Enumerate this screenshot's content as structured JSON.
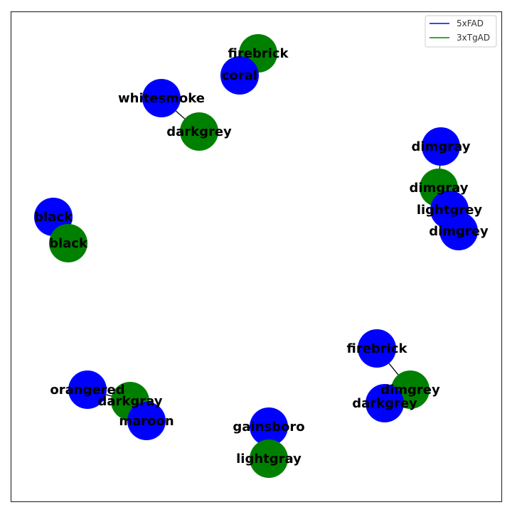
{
  "colors": {
    "frame": "#333333",
    "edge": "#000000",
    "legend_border": "#cccccc"
  },
  "legend": {
    "items": [
      {
        "label": "5xFAD",
        "color": "#0000ff"
      },
      {
        "label": "3xTgAD",
        "color": "#008000"
      }
    ]
  },
  "groups": {
    "5xFAD": {
      "color": "#0000ff"
    },
    "3xTgAD": {
      "color": "#008000"
    }
  },
  "nodes": [
    {
      "id": "n1",
      "label": "firebrick",
      "group": "3xTgAD"
    },
    {
      "id": "n2",
      "label": "coral",
      "group": "5xFAD"
    },
    {
      "id": "n3",
      "label": "whitesmoke",
      "group": "5xFAD"
    },
    {
      "id": "n4",
      "label": "darkgrey",
      "group": "3xTgAD"
    },
    {
      "id": "n5",
      "label": "dimgray",
      "group": "5xFAD"
    },
    {
      "id": "n6",
      "label": "dimgray",
      "group": "3xTgAD"
    },
    {
      "id": "n7",
      "label": "lightgrey",
      "group": "5xFAD"
    },
    {
      "id": "n8",
      "label": "dimgrey",
      "group": "5xFAD"
    },
    {
      "id": "n9",
      "label": "black",
      "group": "5xFAD"
    },
    {
      "id": "n10",
      "label": "black",
      "group": "3xTgAD"
    },
    {
      "id": "n11",
      "label": "firebrick",
      "group": "5xFAD"
    },
    {
      "id": "n12",
      "label": "dimgrey",
      "group": "3xTgAD"
    },
    {
      "id": "n13",
      "label": "darkgrey",
      "group": "5xFAD"
    },
    {
      "id": "n14",
      "label": "orangered",
      "group": "5xFAD"
    },
    {
      "id": "n15",
      "label": "darkgray",
      "group": "3xTgAD"
    },
    {
      "id": "n16",
      "label": "maroon",
      "group": "5xFAD"
    },
    {
      "id": "n17",
      "label": "gainsboro",
      "group": "5xFAD"
    },
    {
      "id": "n18",
      "label": "lightgray",
      "group": "3xTgAD"
    }
  ],
  "edges": [
    [
      "n1",
      "n2"
    ],
    [
      "n3",
      "n4"
    ],
    [
      "n5",
      "n6"
    ],
    [
      "n6",
      "n7"
    ],
    [
      "n7",
      "n8"
    ],
    [
      "n9",
      "n10"
    ],
    [
      "n11",
      "n12"
    ],
    [
      "n12",
      "n13"
    ],
    [
      "n14",
      "n15"
    ],
    [
      "n15",
      "n16"
    ],
    [
      "n17",
      "n18"
    ]
  ]
}
